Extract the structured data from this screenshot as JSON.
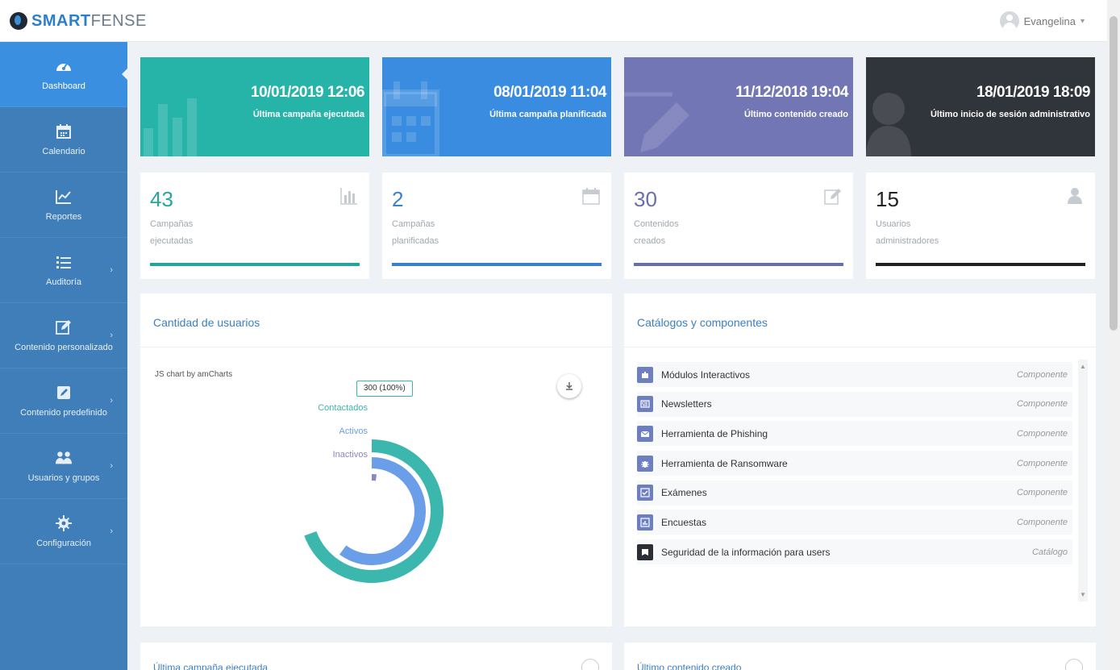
{
  "brand": {
    "name_bold": "SMART",
    "name_light": "FENSE"
  },
  "user": {
    "name": "Evangelina"
  },
  "sidebar": {
    "items": [
      {
        "label": "Dashboard",
        "icon": "dashboard-icon",
        "active": true
      },
      {
        "label": "Calendario",
        "icon": "calendar-icon"
      },
      {
        "label": "Reportes",
        "icon": "chart-line-icon"
      },
      {
        "label": "Auditoría",
        "icon": "list-icon"
      },
      {
        "label": "Contenido personalizado",
        "icon": "edit-icon"
      },
      {
        "label": "Contenido predefinido",
        "icon": "pencil-square-icon"
      },
      {
        "label": "Usuarios y grupos",
        "icon": "users-icon"
      },
      {
        "label": "Configuración",
        "icon": "gear-icon"
      }
    ]
  },
  "banners": [
    {
      "date": "10/01/2019 12:06",
      "label": "Última campaña ejecutada",
      "color": "#26b3a8"
    },
    {
      "date": "08/01/2019 11:04",
      "label": "Última campaña planificada",
      "color": "#3a8ce0"
    },
    {
      "date": "11/12/2018 19:04",
      "label": "Último contenido creado",
      "color": "#7376b5"
    },
    {
      "date": "18/01/2019 18:09",
      "label": "Último inicio de sesión administrativo",
      "color": "#30343b"
    }
  ],
  "stats": [
    {
      "value": "43",
      "label": "Campañas ejecutadas",
      "color": "#26a69a"
    },
    {
      "value": "2",
      "label": "Campañas planificadas",
      "color": "#3a7fd0"
    },
    {
      "value": "30",
      "label": "Contenidos creados",
      "color": "#6a6fa8"
    },
    {
      "value": "15",
      "label": "Usuarios administradores",
      "color": "#222222"
    }
  ],
  "users_panel": {
    "title": "Cantidad de usuarios",
    "credit": "JS chart by amCharts",
    "tooltip": "300 (100%)"
  },
  "chart_data": {
    "type": "radial-bar",
    "categories": [
      "Contactados",
      "Activos",
      "Inactivos"
    ],
    "values": [
      300,
      260,
      9
    ],
    "series_colors": [
      "#3bb7ad",
      "#6b9ee8",
      "#8a84c8"
    ]
  },
  "catalog_panel": {
    "title": "Catálogos y componentes",
    "items": [
      {
        "name": "Módulos Interactivos",
        "type": "Componente"
      },
      {
        "name": "Newsletters",
        "type": "Componente"
      },
      {
        "name": "Herramienta de Phishing",
        "type": "Componente"
      },
      {
        "name": "Herramienta de Ransomware",
        "type": "Componente"
      },
      {
        "name": "Exámenes",
        "type": "Componente"
      },
      {
        "name": "Encuestas",
        "type": "Componente"
      },
      {
        "name": "Seguridad de la información para users",
        "type": "Catálogo"
      }
    ]
  },
  "bottom_panels": [
    {
      "title": "Última campaña ejecutada"
    },
    {
      "title": "Último contenido creado"
    }
  ]
}
